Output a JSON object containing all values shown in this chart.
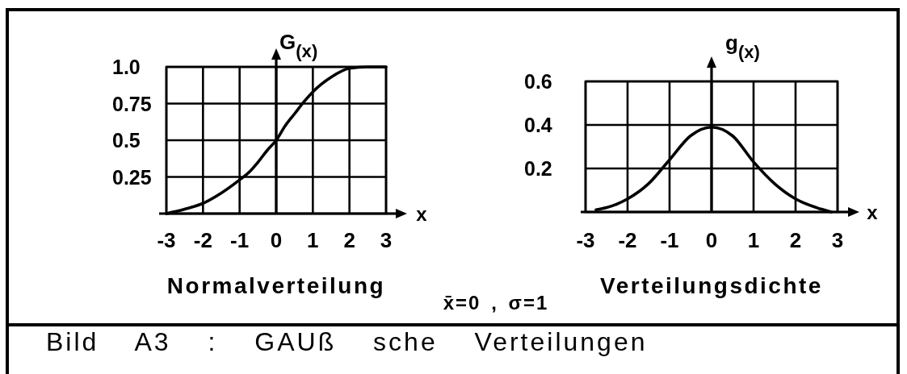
{
  "chart_data": [
    {
      "type": "line",
      "title": "Normalverteilung",
      "xlabel": "x",
      "ylabel": "G$_{(x)}$",
      "x": [
        -3,
        -2.5,
        -2,
        -1.5,
        -1,
        -0.75,
        -0.5,
        -0.25,
        0,
        0.25,
        0.5,
        0.75,
        1,
        1.5,
        2,
        2.5,
        3
      ],
      "values": [
        0,
        0.03,
        0.07,
        0.14,
        0.23,
        0.28,
        0.35,
        0.43,
        0.5,
        0.6,
        0.68,
        0.76,
        0.83,
        0.93,
        0.99,
        1,
        1
      ],
      "color": "#000000",
      "xlim": [
        -3,
        3
      ],
      "xticks": [
        -3,
        -2,
        -1,
        0,
        1,
        2,
        3
      ],
      "ylim": [
        0,
        1
      ],
      "yticks": [
        0.25,
        0.5,
        0.75,
        {
          "value": 1,
          "label": "1.0"
        }
      ],
      "grid": true,
      "annotations": [
        "Bild A3 : GAUß sche Verteilungen"
      ]
    },
    {
      "type": "line",
      "title": "Verteilungsdichte",
      "xlabel": "x",
      "ylabel": "g$_{(x)}$",
      "x": [
        -2.75,
        -2.5,
        -2,
        -1.5,
        -1,
        -0.5,
        0,
        0.5,
        1,
        1.5,
        2,
        2.5,
        2.85
      ],
      "values": [
        0.01,
        0.02,
        0.06,
        0.13,
        0.24,
        0.35,
        0.39,
        0.35,
        0.23,
        0.13,
        0.06,
        0.02,
        0
      ],
      "color": "#000000",
      "xlim": [
        -3,
        3
      ],
      "xticks": [
        -3,
        -2,
        -1,
        0,
        1,
        2,
        3
      ],
      "ylim": [
        0,
        0.6
      ],
      "yticks": [
        0.2,
        0.4,
        0.6
      ],
      "grid": true,
      "annotations": [
        "x̄=0 , σ=1"
      ]
    }
  ]
}
